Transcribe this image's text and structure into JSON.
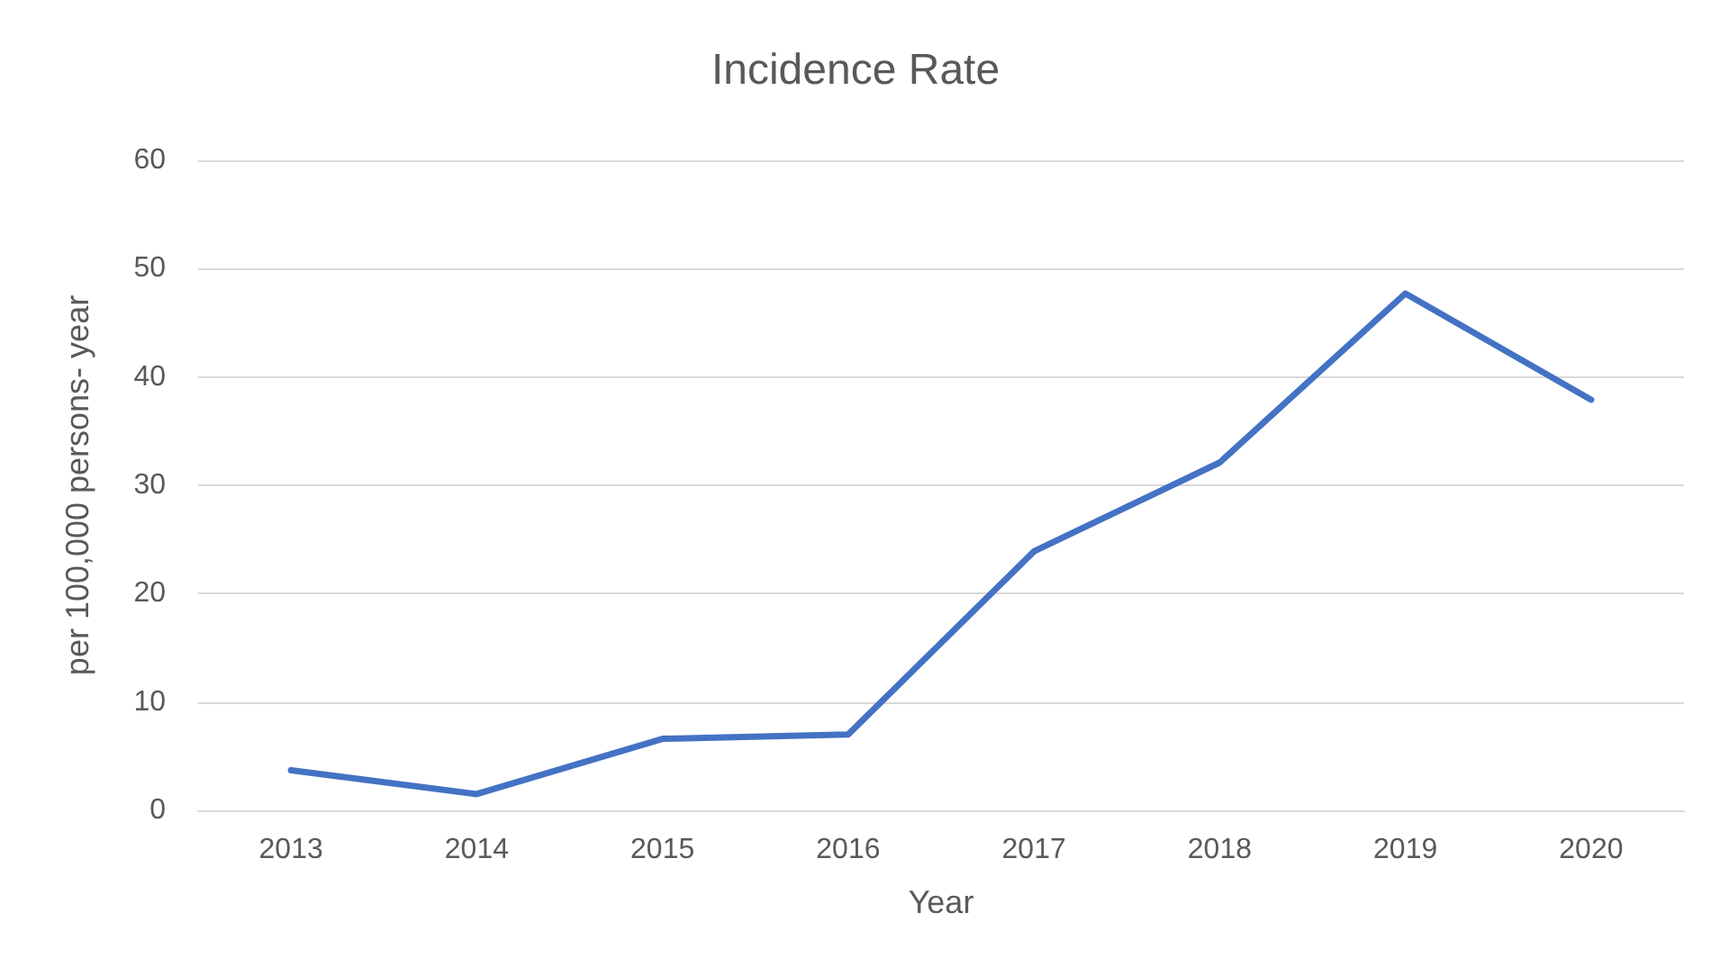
{
  "chart_data": {
    "type": "line",
    "title": "Incidence Rate",
    "xlabel": "Year",
    "ylabel": "per 100,000 persons- year",
    "categories": [
      "2013",
      "2014",
      "2015",
      "2016",
      "2017",
      "2018",
      "2019",
      "2020"
    ],
    "series": [
      {
        "color": "#4472c4",
        "values": [
          3.7,
          1.5,
          6.6,
          7.0,
          23.9,
          32.1,
          47.7,
          37.9
        ]
      }
    ],
    "ylim": [
      0,
      60
    ],
    "yticks": [
      0,
      10,
      20,
      30,
      40,
      50,
      60
    ],
    "grid": "y",
    "marker": "none",
    "line_style": "solid"
  }
}
